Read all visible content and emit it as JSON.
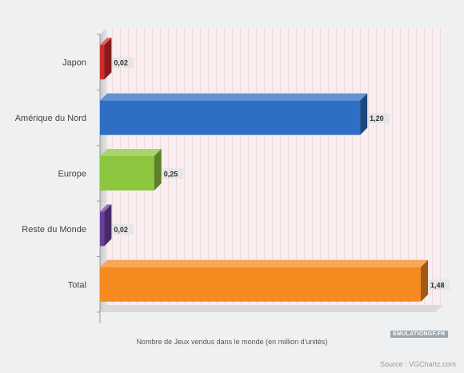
{
  "chart_data": {
    "type": "bar",
    "orientation": "horizontal",
    "categories": [
      "Japon",
      "Amérique du Nord",
      "Europe",
      "Reste du Monde",
      "Total"
    ],
    "values": [
      0.02,
      1.2,
      0.25,
      0.02,
      1.48
    ],
    "value_labels": [
      "0,02",
      "1,20",
      "0,25",
      "0,02",
      "1,48"
    ],
    "colors": [
      "#d42a2a",
      "#2d6fc4",
      "#8cc63f",
      "#6b3d9e",
      "#f58a1f"
    ],
    "xlabel": "Nombre de Jeux vendus dans le monde (en million d'unités)",
    "xlim": [
      0,
      1.55
    ],
    "grid": true,
    "legend": "none",
    "style": "3d"
  },
  "watermark": "EMULATIONGF.FR",
  "source": "Source : VGChartz.com"
}
